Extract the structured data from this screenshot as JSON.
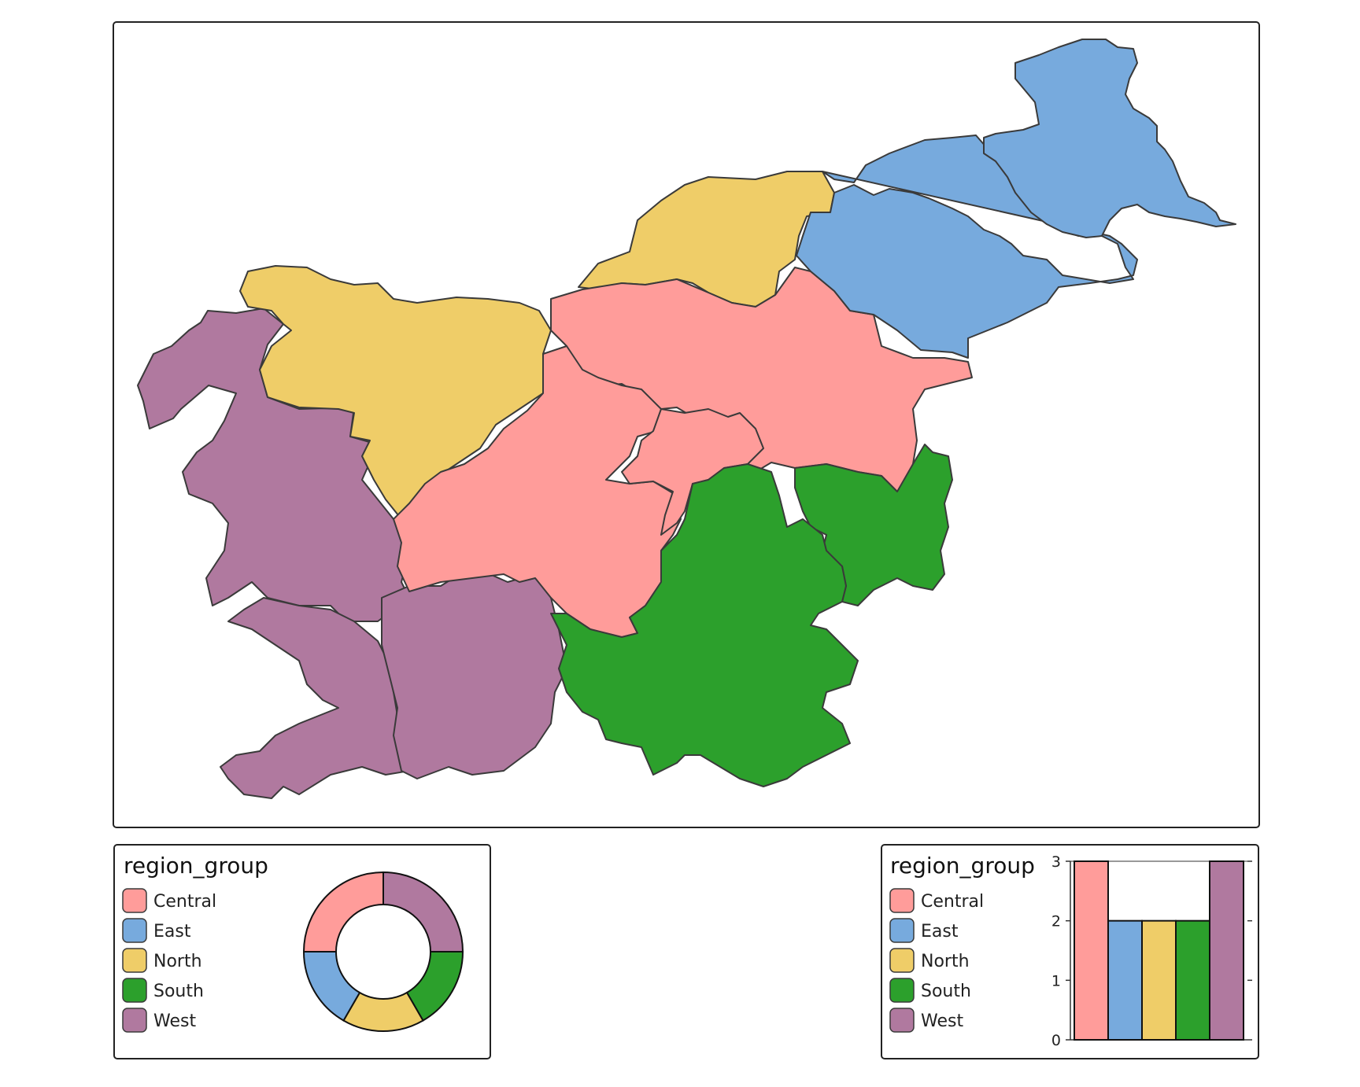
{
  "colors": {
    "Central": "#FF9C9A",
    "East": "#77AADD",
    "North": "#EFCD68",
    "South": "#2CA02C",
    "West": "#B0799F"
  },
  "legend_left": {
    "title": "region_group",
    "items": [
      "Central",
      "East",
      "North",
      "South",
      "West"
    ]
  },
  "legend_right": {
    "title": "region_group",
    "items": [
      "Central",
      "East",
      "North",
      "South",
      "West"
    ]
  },
  "chart_data": [
    {
      "type": "pie",
      "style": "donut",
      "categories": [
        "Central",
        "East",
        "North",
        "South",
        "West"
      ],
      "values": [
        3,
        2,
        2,
        2,
        3
      ]
    },
    {
      "type": "bar",
      "categories": [
        "Central",
        "East",
        "North",
        "South",
        "West"
      ],
      "values": [
        3,
        2,
        2,
        2,
        3
      ],
      "ylim": [
        0,
        3
      ],
      "yticks": [
        "0",
        "1",
        "2",
        "3"
      ]
    }
  ]
}
